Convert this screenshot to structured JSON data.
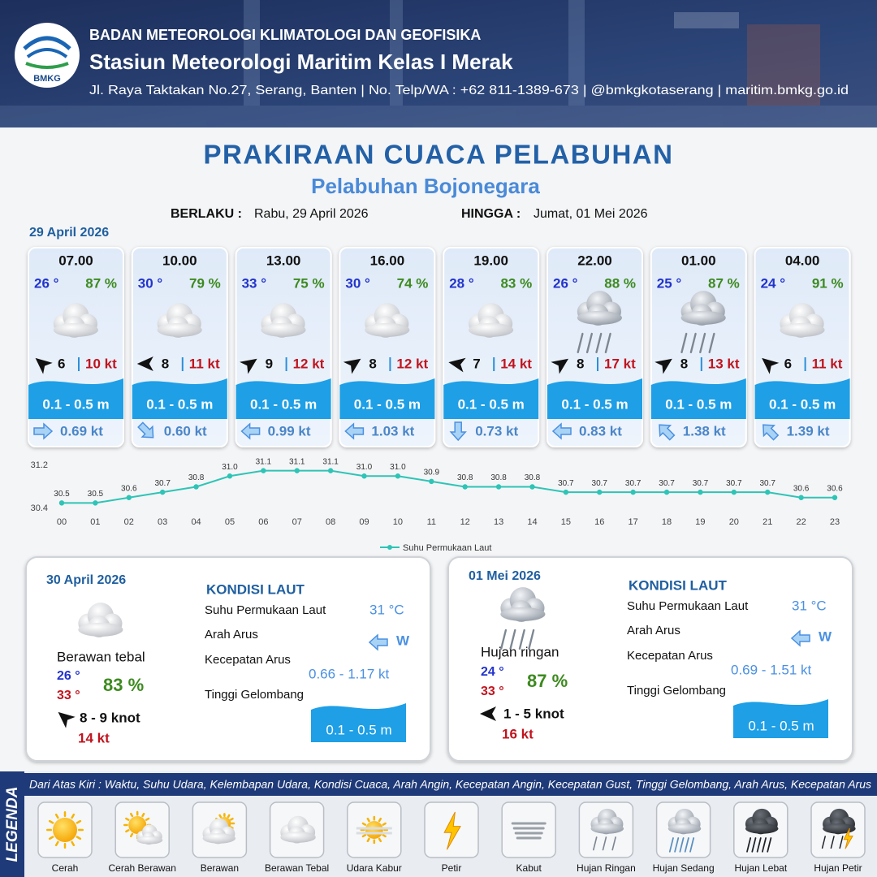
{
  "header": {
    "logo": "BMKG",
    "agency": "BADAN METEOROLOGI KLIMATOLOGI DAN GEOFISIKA",
    "station": "Stasiun Meteorologi Maritim Kelas I Merak",
    "address": "Jl. Raya Taktakan No.27, Serang, Banten | No. Telp/WA : +62 811-1389-673 | @bmkgkotaserang | maritim.bmkg.go.id"
  },
  "title": "PRAKIRAAN CUACA PELABUHAN",
  "subtitle": "Pelabuhan Bojonegara",
  "validity": {
    "from_label": "BERLAKU :",
    "from": "Rabu, 29 April 2026",
    "to_label": "HINGGA :",
    "to": "Jumat, 01 Mei 2026"
  },
  "day1_date": "29 April 2026",
  "forecasts": [
    {
      "time": "07.00",
      "temp": "26 °",
      "humidity": "87 %",
      "wind": 6,
      "gust": "10 kt",
      "wave": "0.1 - 0.5 m",
      "current": "0.69 kt"
    },
    {
      "time": "10.00",
      "temp": "30 °",
      "humidity": "79 %",
      "wind": 8,
      "gust": "11 kt",
      "wave": "0.1 - 0.5 m",
      "current": "0.60 kt"
    },
    {
      "time": "13.00",
      "temp": "33 °",
      "humidity": "75 %",
      "wind": 9,
      "gust": "12 kt",
      "wave": "0.1 - 0.5 m",
      "current": "0.99 kt"
    },
    {
      "time": "16.00",
      "temp": "30 °",
      "humidity": "74 %",
      "wind": 8,
      "gust": "12 kt",
      "wave": "0.1 - 0.5 m",
      "current": "1.03 kt"
    },
    {
      "time": "19.00",
      "temp": "28 °",
      "humidity": "83 %",
      "wind": 7,
      "gust": "14 kt",
      "wave": "0.1 - 0.5 m",
      "current": "0.73 kt"
    },
    {
      "time": "22.00",
      "temp": "26 °",
      "humidity": "88 %",
      "wind": 8,
      "gust": "17 kt",
      "wave": "0.1 - 0.5 m",
      "current": "0.83 kt"
    },
    {
      "time": "01.00",
      "temp": "25 °",
      "humidity": "87 %",
      "wind": 8,
      "gust": "13 kt",
      "wave": "0.1 - 0.5 m",
      "current": "1.38 kt"
    },
    {
      "time": "04.00",
      "temp": "24 °",
      "humidity": "91 %",
      "wind": 6,
      "gust": "11 kt",
      "wave": "0.1 - 0.5 m",
      "current": "1.39 kt"
    }
  ],
  "chart_data": {
    "type": "line",
    "categories": [
      "00",
      "01",
      "02",
      "03",
      "04",
      "05",
      "06",
      "07",
      "08",
      "09",
      "10",
      "11",
      "12",
      "13",
      "14",
      "15",
      "16",
      "17",
      "18",
      "19",
      "20",
      "21",
      "22",
      "23"
    ],
    "series": [
      {
        "name": "Suhu Permukaan Laut",
        "color": "#2ec4b6",
        "values": [
          30.5,
          30.5,
          30.6,
          30.7,
          30.8,
          31.0,
          31.1,
          31.1,
          31.1,
          31.0,
          31.0,
          30.9,
          30.8,
          30.8,
          30.8,
          30.7,
          30.7,
          30.7,
          30.7,
          30.7,
          30.7,
          30.7,
          30.6,
          30.6
        ],
        "value_labels": [
          "30.5",
          "30.5",
          "30.6",
          "30.7",
          "30.8",
          "31.0",
          "31.1",
          "31.1",
          "31.1",
          "31.0",
          "31.0",
          "30.9",
          "30.8",
          "30.8",
          "30.8",
          "30.7",
          "30.7",
          "30.7",
          "30.7",
          "30.7",
          "30.7",
          "30.7",
          "30.6",
          "30.6"
        ]
      }
    ],
    "ylim": [
      30.4,
      31.2
    ],
    "yticks": [
      30.4,
      31.2
    ],
    "legend": "bottom"
  },
  "days": [
    {
      "date": "30 April 2026",
      "condition": "Berawan tebal",
      "temp_min": "26 °",
      "temp_max": "33 °",
      "humidity": "83 %",
      "wind": "8 - 9 knot",
      "gust": "14 kt",
      "sea_title": "KONDISI LAUT",
      "sea_labels": [
        "Suhu Permukaan Laut",
        "Arah Arus",
        "Kecepatan Arus",
        "Tinggi Gelombang"
      ],
      "sst": "31 °C",
      "current_dir": "W",
      "current_speed": "0.66 - 1.17 kt",
      "wave": "0.1 - 0.5 m"
    },
    {
      "date": "01 Mei 2026",
      "condition": "Hujan ringan",
      "temp_min": "24 °",
      "temp_max": "33 °",
      "humidity": "87 %",
      "wind": "1 - 5 knot",
      "gust": "16 kt",
      "sea_title": "KONDISI LAUT",
      "sea_labels": [
        "Suhu Permukaan Laut",
        "Arah Arus",
        "Kecepatan Arus",
        "Tinggi Gelombang"
      ],
      "sst": "31 °C",
      "current_dir": "W",
      "current_speed": "0.69 - 1.51 kt",
      "wave": "0.1 - 0.5 m"
    }
  ],
  "legend": {
    "title": "LEGENDA",
    "description": "Dari Atas Kiri : Waktu, Suhu Udara, Kelembapan Udara, Kondisi Cuaca, Arah Angin, Kecepatan Angin, Kecepatan Gust, Tinggi Gelombang, Arah Arus, Kecepatan Arus",
    "items": [
      "Cerah",
      "Cerah Berawan",
      "Berawan",
      "Berawan Tebal",
      "Udara Kabur",
      "Petir",
      "Kabut",
      "Hujan Ringan",
      "Hujan Sedang",
      "Hujan Lebat",
      "Hujan Petir"
    ]
  }
}
